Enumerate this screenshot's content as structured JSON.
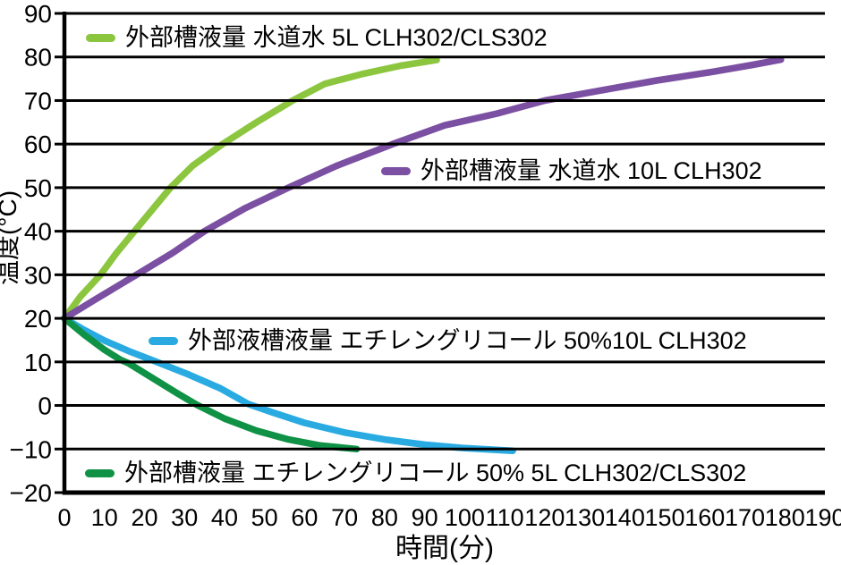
{
  "chart_data": {
    "type": "line",
    "title": "",
    "xlabel": "時間(分)",
    "ylabel": "温度(°C)",
    "xlim": [
      0,
      190
    ],
    "ylim": [
      -20,
      90
    ],
    "x_ticks": [
      0,
      10,
      20,
      30,
      40,
      50,
      60,
      70,
      80,
      90,
      100,
      110,
      120,
      130,
      140,
      150,
      160,
      170,
      180,
      190
    ],
    "y_ticks": [
      90,
      80,
      70,
      60,
      50,
      40,
      30,
      20,
      10,
      0,
      -10,
      -20
    ],
    "grid": "horizontal-only",
    "gridline_color": "#000000",
    "axis_color": "#000000",
    "legend_position": "inside-plot",
    "series": [
      {
        "name": "tap-water-5L",
        "label": "外部槽液量 水道水 5L CLH302/CLS302",
        "color": "#8CC63F",
        "points": [
          [
            0,
            20
          ],
          [
            4,
            25
          ],
          [
            9,
            30
          ],
          [
            13,
            35
          ],
          [
            17.5,
            40
          ],
          [
            22,
            45
          ],
          [
            26.5,
            50
          ],
          [
            32,
            55
          ],
          [
            39.5,
            60
          ],
          [
            48,
            65
          ],
          [
            57,
            70
          ],
          [
            65,
            73.8
          ],
          [
            74,
            76
          ],
          [
            84,
            78
          ],
          [
            93,
            79.3
          ]
        ]
      },
      {
        "name": "tap-water-10L",
        "label": "外部槽液量 水道水 10L CLH302",
        "color": "#7B4FA2",
        "points": [
          [
            0,
            20
          ],
          [
            8,
            24.5
          ],
          [
            18,
            30
          ],
          [
            27,
            35
          ],
          [
            35,
            40
          ],
          [
            45,
            45.2
          ],
          [
            56,
            50
          ],
          [
            68,
            55
          ],
          [
            82,
            60
          ],
          [
            95,
            64.3
          ],
          [
            108,
            67
          ],
          [
            120,
            70
          ],
          [
            134,
            72.3
          ],
          [
            148,
            74.6
          ],
          [
            162,
            76.6
          ],
          [
            172,
            78.2
          ],
          [
            179,
            79.4
          ]
        ]
      },
      {
        "name": "ethylene-glycol-50pct-10L",
        "label": "外部液槽液量 エチレングリコール 50%10L CLH302",
        "color": "#29ABE2",
        "points": [
          [
            0,
            20
          ],
          [
            5,
            17.3
          ],
          [
            10,
            14.9
          ],
          [
            16,
            12.5
          ],
          [
            23,
            10
          ],
          [
            31,
            7.1
          ],
          [
            39,
            3.9
          ],
          [
            46,
            0.3
          ],
          [
            52,
            -1.6
          ],
          [
            60,
            -4
          ],
          [
            70,
            -6.2
          ],
          [
            80,
            -7.8
          ],
          [
            90,
            -9
          ],
          [
            100,
            -9.8
          ],
          [
            106,
            -10.1
          ],
          [
            112,
            -10.4
          ]
        ]
      },
      {
        "name": "ethylene-glycol-50pct-5L",
        "label": "外部槽液量 エチレングリコール 50% 5L CLH302/CLS302",
        "color": "#0F9245",
        "points": [
          [
            0,
            20
          ],
          [
            5,
            16.2
          ],
          [
            10,
            12.8
          ],
          [
            14,
            10.5
          ],
          [
            16,
            9.7
          ],
          [
            22,
            6.3
          ],
          [
            28,
            2.9
          ],
          [
            33,
            0.2
          ],
          [
            40,
            -3
          ],
          [
            48,
            -5.8
          ],
          [
            56,
            -7.8
          ],
          [
            64,
            -9.2
          ],
          [
            73,
            -10
          ]
        ]
      }
    ]
  }
}
